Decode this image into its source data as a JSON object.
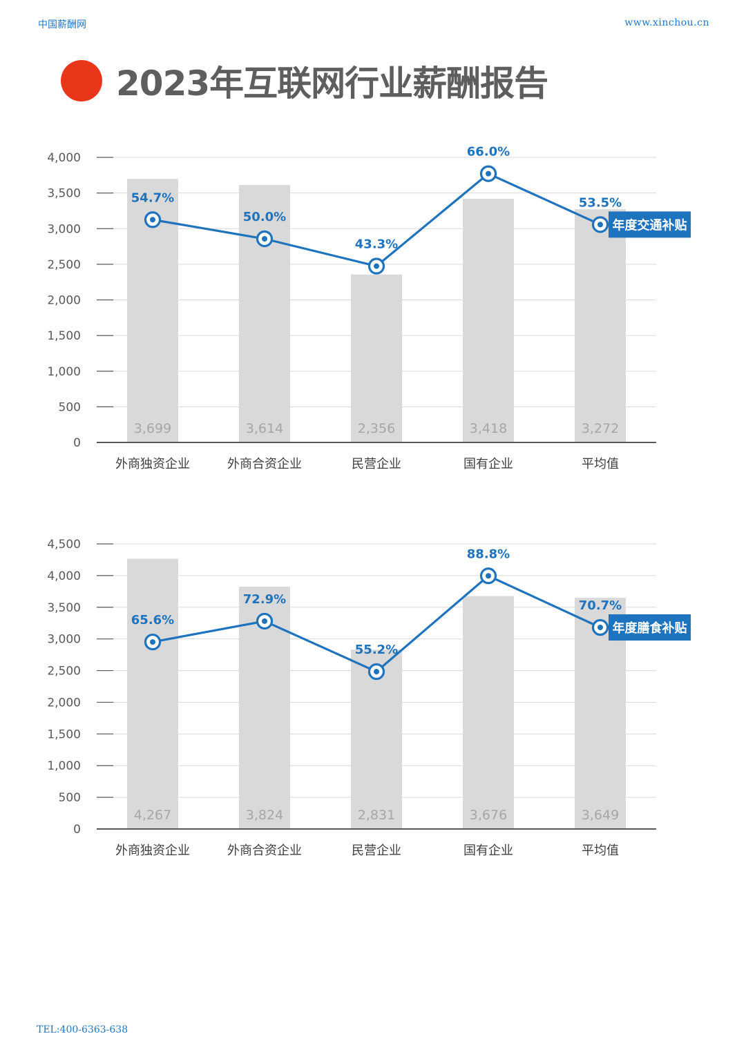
{
  "header": {
    "site_name": "中国薪酬网",
    "site_url": "www.xinchou.cn"
  },
  "title": "2023年互联网行业薪酬报告",
  "footer": {
    "tel": "TEL:400-6363-638"
  },
  "colors": {
    "accent_dot": "#e9361a",
    "line": "#1e73be",
    "bar": "#d9d9d9",
    "axis_text": "#595959",
    "bar_label": "#a6a6a6"
  },
  "chart_data": [
    {
      "type": "bar",
      "categories": [
        "外商独资企业",
        "外商合资企业",
        "民营企业",
        "国有企业",
        "平均值"
      ],
      "series": [
        {
          "values": [
            3699,
            3614,
            2356,
            3418,
            3272
          ]
        },
        {
          "name": "年度交通补贴",
          "type": "line",
          "values": [
            54.7,
            50.0,
            43.3,
            66.0,
            53.5
          ],
          "labels": [
            "54.7%",
            "50.0%",
            "43.3%",
            "66.0%",
            "53.5%"
          ]
        }
      ],
      "bar_labels": [
        "3,699",
        "3,614",
        "2,356",
        "3,418",
        "3,272"
      ],
      "yticks": [
        "0",
        "500",
        "1,000",
        "1,500",
        "2,000",
        "2,500",
        "3,000",
        "3,500",
        "4,000"
      ],
      "ylim": [
        0,
        4000
      ],
      "line_ylim": [
        0,
        70
      ],
      "grid": true
    },
    {
      "type": "bar",
      "categories": [
        "外商独资企业",
        "外商合资企业",
        "民营企业",
        "国有企业",
        "平均值"
      ],
      "series": [
        {
          "values": [
            4267,
            3824,
            2831,
            3676,
            3649
          ]
        },
        {
          "name": "年度膳食补贴",
          "type": "line",
          "values": [
            65.6,
            72.9,
            55.2,
            88.8,
            70.7
          ],
          "labels": [
            "65.6%",
            "72.9%",
            "55.2%",
            "88.8%",
            "70.7%"
          ]
        }
      ],
      "bar_labels": [
        "4,267",
        "3,824",
        "2,831",
        "3,676",
        "3,649"
      ],
      "yticks": [
        "0",
        "500",
        "1,000",
        "1,500",
        "2,000",
        "2,500",
        "3,000",
        "3,500",
        "4,000",
        "4,500"
      ],
      "ylim": [
        0,
        4500
      ],
      "line_ylim": [
        0,
        100
      ],
      "grid": true
    }
  ]
}
